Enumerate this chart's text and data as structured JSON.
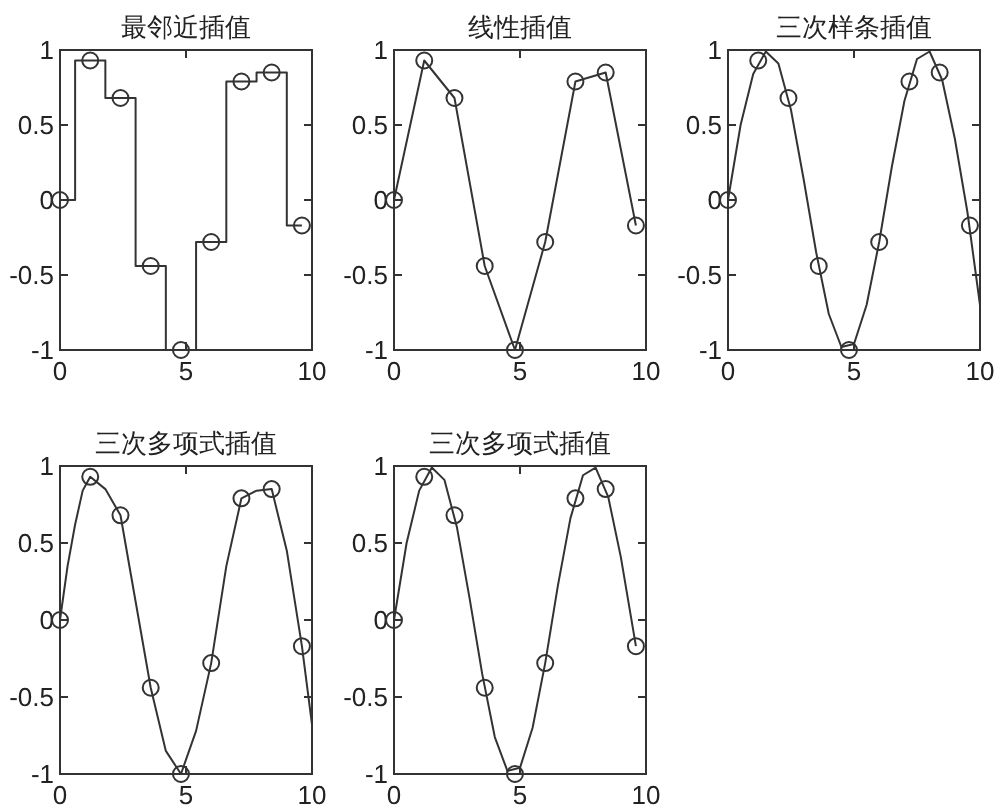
{
  "chart_data": [
    {
      "type": "step",
      "title": "最邻近插值",
      "xlim": [
        0,
        10
      ],
      "ylim": [
        -1,
        1
      ],
      "xticks": [
        0,
        5,
        10
      ],
      "yticks": [
        -1,
        -0.5,
        0,
        0.5,
        1
      ],
      "series": [
        {
          "color": "#333333",
          "marker": "none",
          "x": [
            0,
            1.2,
            2.4,
            3.6,
            4.8,
            6.0,
            7.2,
            8.4,
            9.6
          ],
          "values": [
            0,
            0.93,
            0.68,
            -0.44,
            -1.0,
            -0.28,
            0.79,
            0.85,
            -0.17
          ]
        },
        {
          "type": "scatter",
          "color": "#333333",
          "marker": "circle",
          "x": [
            0,
            1.2,
            2.4,
            3.6,
            4.8,
            6.0,
            7.2,
            8.4,
            9.6
          ],
          "values": [
            0,
            0.93,
            0.68,
            -0.44,
            -1.0,
            -0.28,
            0.79,
            0.85,
            -0.17
          ]
        }
      ]
    },
    {
      "type": "line",
      "title": "线性插值",
      "xlim": [
        0,
        10
      ],
      "ylim": [
        -1,
        1
      ],
      "xticks": [
        0,
        5,
        10
      ],
      "yticks": [
        -1,
        -0.5,
        0,
        0.5,
        1
      ],
      "series": [
        {
          "color": "#333333",
          "marker": "none",
          "x": [
            0,
            1.2,
            2.4,
            3.6,
            4.8,
            6.0,
            7.2,
            8.4,
            9.6
          ],
          "values": [
            0,
            0.93,
            0.68,
            -0.44,
            -1.0,
            -0.28,
            0.79,
            0.85,
            -0.17
          ]
        },
        {
          "type": "scatter",
          "color": "#333333",
          "marker": "circle",
          "x": [
            0,
            1.2,
            2.4,
            3.6,
            4.8,
            6.0,
            7.2,
            8.4,
            9.6
          ],
          "values": [
            0,
            0.93,
            0.68,
            -0.44,
            -1.0,
            -0.28,
            0.79,
            0.85,
            -0.17
          ]
        }
      ]
    },
    {
      "type": "line",
      "title": "三次样条插值",
      "xlim": [
        0,
        10
      ],
      "ylim": [
        -1,
        1
      ],
      "xticks": [
        0,
        5,
        10
      ],
      "yticks": [
        -1,
        -0.5,
        0,
        0.5,
        1
      ],
      "series": [
        {
          "color": "#333333",
          "marker": "none",
          "x": [
            0,
            0.5,
            1,
            1.5,
            2,
            2.5,
            3,
            3.5,
            4,
            4.5,
            5,
            5.5,
            6,
            6.5,
            7,
            7.5,
            8,
            8.5,
            9,
            9.5,
            10
          ],
          "values": [
            0,
            0.5,
            0.84,
            0.99,
            0.91,
            0.6,
            0.14,
            -0.35,
            -0.76,
            -0.98,
            -0.96,
            -0.7,
            -0.28,
            0.22,
            0.66,
            0.94,
            0.99,
            0.8,
            0.41,
            -0.08,
            -0.7
          ]
        },
        {
          "type": "scatter",
          "color": "#333333",
          "marker": "circle",
          "x": [
            0,
            1.2,
            2.4,
            3.6,
            4.8,
            6.0,
            7.2,
            8.4,
            9.6
          ],
          "values": [
            0,
            0.93,
            0.68,
            -0.44,
            -1.0,
            -0.28,
            0.79,
            0.85,
            -0.17
          ]
        }
      ]
    },
    {
      "type": "line",
      "title": "三次多项式插值",
      "xlim": [
        0,
        10
      ],
      "ylim": [
        -1,
        1
      ],
      "xticks": [
        0,
        5,
        10
      ],
      "yticks": [
        -1,
        -0.5,
        0,
        0.5,
        1
      ],
      "series": [
        {
          "color": "#333333",
          "marker": "none",
          "x": [
            0,
            0.3,
            0.6,
            0.9,
            1.2,
            1.8,
            2.4,
            3,
            3.6,
            4.2,
            4.8,
            5.4,
            6,
            6.6,
            7.2,
            7.8,
            8.4,
            9,
            9.6,
            10
          ],
          "values": [
            0,
            0.35,
            0.62,
            0.84,
            0.93,
            0.85,
            0.68,
            0.12,
            -0.44,
            -0.85,
            -1.0,
            -0.72,
            -0.28,
            0.35,
            0.79,
            0.84,
            0.85,
            0.45,
            -0.17,
            -0.68
          ]
        },
        {
          "type": "scatter",
          "color": "#333333",
          "marker": "circle",
          "x": [
            0,
            1.2,
            2.4,
            3.6,
            4.8,
            6.0,
            7.2,
            8.4,
            9.6
          ],
          "values": [
            0,
            0.93,
            0.68,
            -0.44,
            -1.0,
            -0.28,
            0.79,
            0.85,
            -0.17
          ]
        }
      ]
    },
    {
      "type": "line",
      "title": "三次多项式插值",
      "xlim": [
        0,
        10
      ],
      "ylim": [
        -1,
        1
      ],
      "xticks": [
        0,
        5,
        10
      ],
      "yticks": [
        -1,
        -0.5,
        0,
        0.5,
        1
      ],
      "series": [
        {
          "color": "#333333",
          "marker": "none",
          "x": [
            0,
            0.5,
            1,
            1.5,
            2,
            2.5,
            3,
            3.5,
            4,
            4.5,
            5,
            5.5,
            6,
            6.5,
            7,
            7.5,
            8,
            8.5,
            9,
            9.6
          ],
          "values": [
            0,
            0.5,
            0.84,
            0.99,
            0.91,
            0.6,
            0.14,
            -0.35,
            -0.76,
            -0.98,
            -0.96,
            -0.7,
            -0.28,
            0.22,
            0.66,
            0.94,
            0.99,
            0.8,
            0.41,
            -0.17
          ]
        },
        {
          "type": "scatter",
          "color": "#333333",
          "marker": "circle",
          "x": [
            0,
            1.2,
            2.4,
            3.6,
            4.8,
            6.0,
            7.2,
            8.4,
            9.6
          ],
          "values": [
            0,
            0.93,
            0.68,
            -0.44,
            -1.0,
            -0.28,
            0.79,
            0.85,
            -0.17
          ]
        }
      ]
    }
  ]
}
